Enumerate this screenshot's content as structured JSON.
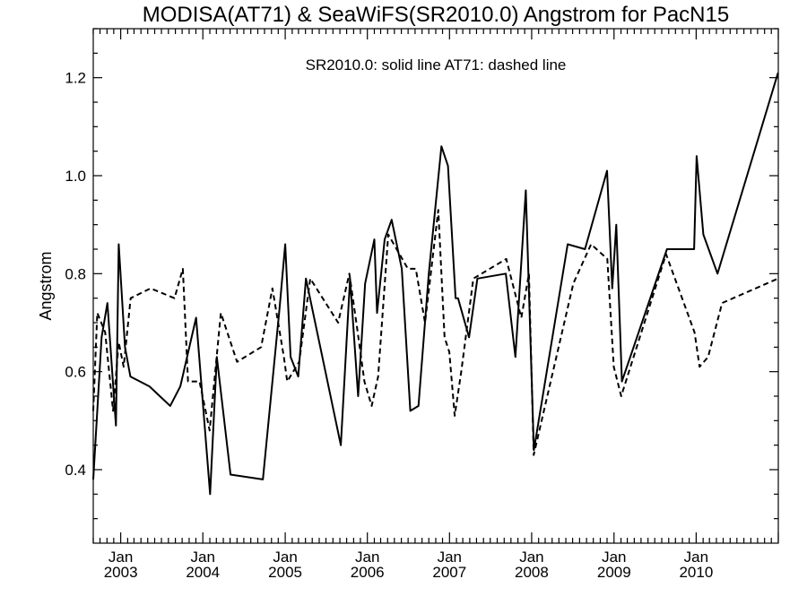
{
  "chart_data": {
    "type": "line",
    "title": "MODISA(AT71) & SeaWiFS(SR2010.0)  Angstrom for PacN15",
    "annotation": "SR2010.0: solid line   AT71: dashed line",
    "xlabel": "",
    "ylabel": "Angstrom",
    "xlim": [
      "2002-09-01",
      "2011-01-01"
    ],
    "ylim": [
      0.25,
      1.3
    ],
    "yticks": [
      {
        "value": 0.4,
        "label": "0.4"
      },
      {
        "value": 0.6,
        "label": "0.6"
      },
      {
        "value": 0.8,
        "label": "0.8"
      },
      {
        "value": 1.0,
        "label": "1.0"
      },
      {
        "value": 1.2,
        "label": "1.2"
      }
    ],
    "xticks": [
      {
        "date": "2003-01-01",
        "month": "Jan",
        "year": "2003"
      },
      {
        "date": "2004-01-01",
        "month": "Jan",
        "year": "2004"
      },
      {
        "date": "2005-01-01",
        "month": "Jan",
        "year": "2005"
      },
      {
        "date": "2006-01-01",
        "month": "Jan",
        "year": "2006"
      },
      {
        "date": "2007-01-01",
        "month": "Jan",
        "year": "2007"
      },
      {
        "date": "2008-01-01",
        "month": "Jan",
        "year": "2008"
      },
      {
        "date": "2009-01-01",
        "month": "Jan",
        "year": "2009"
      },
      {
        "date": "2010-01-01",
        "month": "Jan",
        "year": "2010"
      }
    ],
    "grid": false,
    "series": [
      {
        "style": "solid",
        "points": [
          [
            "2002-09-01",
            0.38
          ],
          [
            "2002-10-08",
            0.67
          ],
          [
            "2002-11-03",
            0.74
          ],
          [
            "2002-12-11",
            0.49
          ],
          [
            "2002-12-23",
            0.86
          ],
          [
            "2003-01-20",
            0.65
          ],
          [
            "2003-02-13",
            0.59
          ],
          [
            "2003-05-09",
            0.57
          ],
          [
            "2003-08-09",
            0.53
          ],
          [
            "2003-09-23",
            0.57
          ],
          [
            "2003-12-02",
            0.71
          ],
          [
            "2004-02-02",
            0.35
          ],
          [
            "2004-03-03",
            0.63
          ],
          [
            "2004-05-03",
            0.39
          ],
          [
            "2004-09-24",
            0.38
          ],
          [
            "2004-12-07",
            0.73
          ],
          [
            "2005-01-01",
            0.86
          ],
          [
            "2005-01-25",
            0.63
          ],
          [
            "2005-02-28",
            0.59
          ],
          [
            "2005-04-03",
            0.79
          ],
          [
            "2005-09-05",
            0.45
          ],
          [
            "2005-10-16",
            0.79
          ],
          [
            "2005-11-21",
            0.55
          ],
          [
            "2005-12-22",
            0.78
          ],
          [
            "2006-02-01",
            0.87
          ],
          [
            "2006-02-13",
            0.72
          ],
          [
            "2006-03-19",
            0.87
          ],
          [
            "2006-04-19",
            0.91
          ],
          [
            "2006-06-03",
            0.81
          ],
          [
            "2006-07-11",
            0.52
          ],
          [
            "2006-08-16",
            0.53
          ],
          [
            "2006-10-01",
            0.8
          ],
          [
            "2006-11-26",
            1.06
          ],
          [
            "2006-12-25",
            1.02
          ],
          [
            "2007-01-28",
            0.75
          ],
          [
            "2007-02-08",
            0.75
          ],
          [
            "2007-03-29",
            0.67
          ],
          [
            "2007-05-05",
            0.79
          ],
          [
            "2007-09-08",
            0.8
          ],
          [
            "2007-10-21",
            0.63
          ],
          [
            "2007-12-06",
            0.97
          ],
          [
            "2008-01-11",
            0.44
          ],
          [
            "2008-06-09",
            0.86
          ],
          [
            "2008-08-25",
            0.85
          ],
          [
            "2008-12-01",
            1.01
          ],
          [
            "2008-12-24",
            0.77
          ],
          [
            "2009-01-11",
            0.9
          ],
          [
            "2009-02-05",
            0.58
          ],
          [
            "2009-08-24",
            0.85
          ],
          [
            "2009-12-23",
            0.85
          ],
          [
            "2010-01-03",
            1.04
          ],
          [
            "2010-02-02",
            0.88
          ],
          [
            "2010-04-06",
            0.8
          ],
          [
            "2010-12-31",
            1.21
          ]
        ]
      },
      {
        "style": "dashed",
        "points": [
          [
            "2002-09-01",
            0.52
          ],
          [
            "2002-09-19",
            0.72
          ],
          [
            "2002-10-24",
            0.68
          ],
          [
            "2002-11-28",
            0.52
          ],
          [
            "2002-12-23",
            0.66
          ],
          [
            "2003-01-14",
            0.61
          ],
          [
            "2003-02-14",
            0.75
          ],
          [
            "2003-05-14",
            0.77
          ],
          [
            "2003-08-28",
            0.75
          ],
          [
            "2003-10-04",
            0.81
          ],
          [
            "2003-10-27",
            0.58
          ],
          [
            "2003-12-17",
            0.58
          ],
          [
            "2004-01-31",
            0.48
          ],
          [
            "2004-03-21",
            0.72
          ],
          [
            "2004-06-01",
            0.62
          ],
          [
            "2004-09-16",
            0.65
          ],
          [
            "2004-11-05",
            0.77
          ],
          [
            "2004-12-26",
            0.63
          ],
          [
            "2005-01-10",
            0.58
          ],
          [
            "2005-03-04",
            0.62
          ],
          [
            "2005-04-22",
            0.79
          ],
          [
            "2005-08-24",
            0.7
          ],
          [
            "2005-10-13",
            0.8
          ],
          [
            "2005-11-16",
            0.69
          ],
          [
            "2005-12-19",
            0.58
          ],
          [
            "2006-01-20",
            0.53
          ],
          [
            "2006-02-18",
            0.59
          ],
          [
            "2006-04-04",
            0.88
          ],
          [
            "2006-06-30",
            0.81
          ],
          [
            "2006-08-04",
            0.81
          ],
          [
            "2006-09-14",
            0.7
          ],
          [
            "2006-11-12",
            0.93
          ],
          [
            "2006-12-10",
            0.67
          ],
          [
            "2006-12-31",
            0.64
          ],
          [
            "2007-01-24",
            0.51
          ],
          [
            "2007-02-22",
            0.6
          ],
          [
            "2007-04-17",
            0.79
          ],
          [
            "2007-09-10",
            0.83
          ],
          [
            "2007-11-16",
            0.71
          ],
          [
            "2007-12-20",
            0.8
          ],
          [
            "2008-01-10",
            0.43
          ],
          [
            "2008-07-04",
            0.78
          ],
          [
            "2008-09-21",
            0.86
          ],
          [
            "2008-12-02",
            0.83
          ],
          [
            "2008-12-31",
            0.61
          ],
          [
            "2009-02-02",
            0.55
          ],
          [
            "2009-08-20",
            0.84
          ],
          [
            "2009-12-25",
            0.68
          ],
          [
            "2010-01-16",
            0.61
          ],
          [
            "2010-02-23",
            0.63
          ],
          [
            "2010-04-26",
            0.74
          ],
          [
            "2010-12-31",
            0.79
          ]
        ]
      }
    ]
  }
}
